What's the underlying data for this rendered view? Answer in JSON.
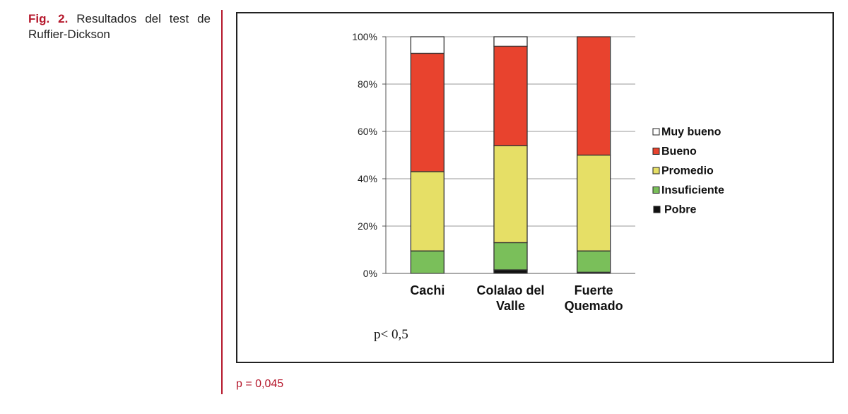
{
  "caption": {
    "label": "Fig. 2.",
    "text": "Resultados del test de Ruffier-Dickson"
  },
  "chart_data": {
    "type": "bar",
    "stacked": true,
    "categories": [
      [
        "Cachi"
      ],
      [
        "Colalao del",
        "Valle"
      ],
      [
        "Fuerte",
        "Quemado"
      ]
    ],
    "series": [
      {
        "name": "Pobre",
        "color": "#111111",
        "values": [
          0,
          1.5,
          0.5
        ]
      },
      {
        "name": "Insuficiente",
        "color": "#7abf5a",
        "values": [
          9.5,
          11.5,
          9
        ]
      },
      {
        "name": "Promedio",
        "color": "#e6df66",
        "values": [
          33.5,
          41,
          40.5
        ]
      },
      {
        "name": "Bueno",
        "color": "#e8432e",
        "values": [
          50,
          42,
          50
        ]
      },
      {
        "name": "Muy bueno",
        "color": "#ffffff",
        "values": [
          7,
          4,
          0
        ]
      }
    ],
    "y_ticks": [
      "0%",
      "20%",
      "40%",
      "60%",
      "80%",
      "100%"
    ],
    "ylim": [
      0,
      100
    ],
    "grid": true,
    "legend": {
      "placement": "right",
      "order": [
        "Muy bueno",
        "Bueno",
        "Promedio",
        "Insuficiente",
        "Pobre"
      ]
    },
    "annotation": "p< 0,5"
  },
  "footnote": "p = 0,045"
}
